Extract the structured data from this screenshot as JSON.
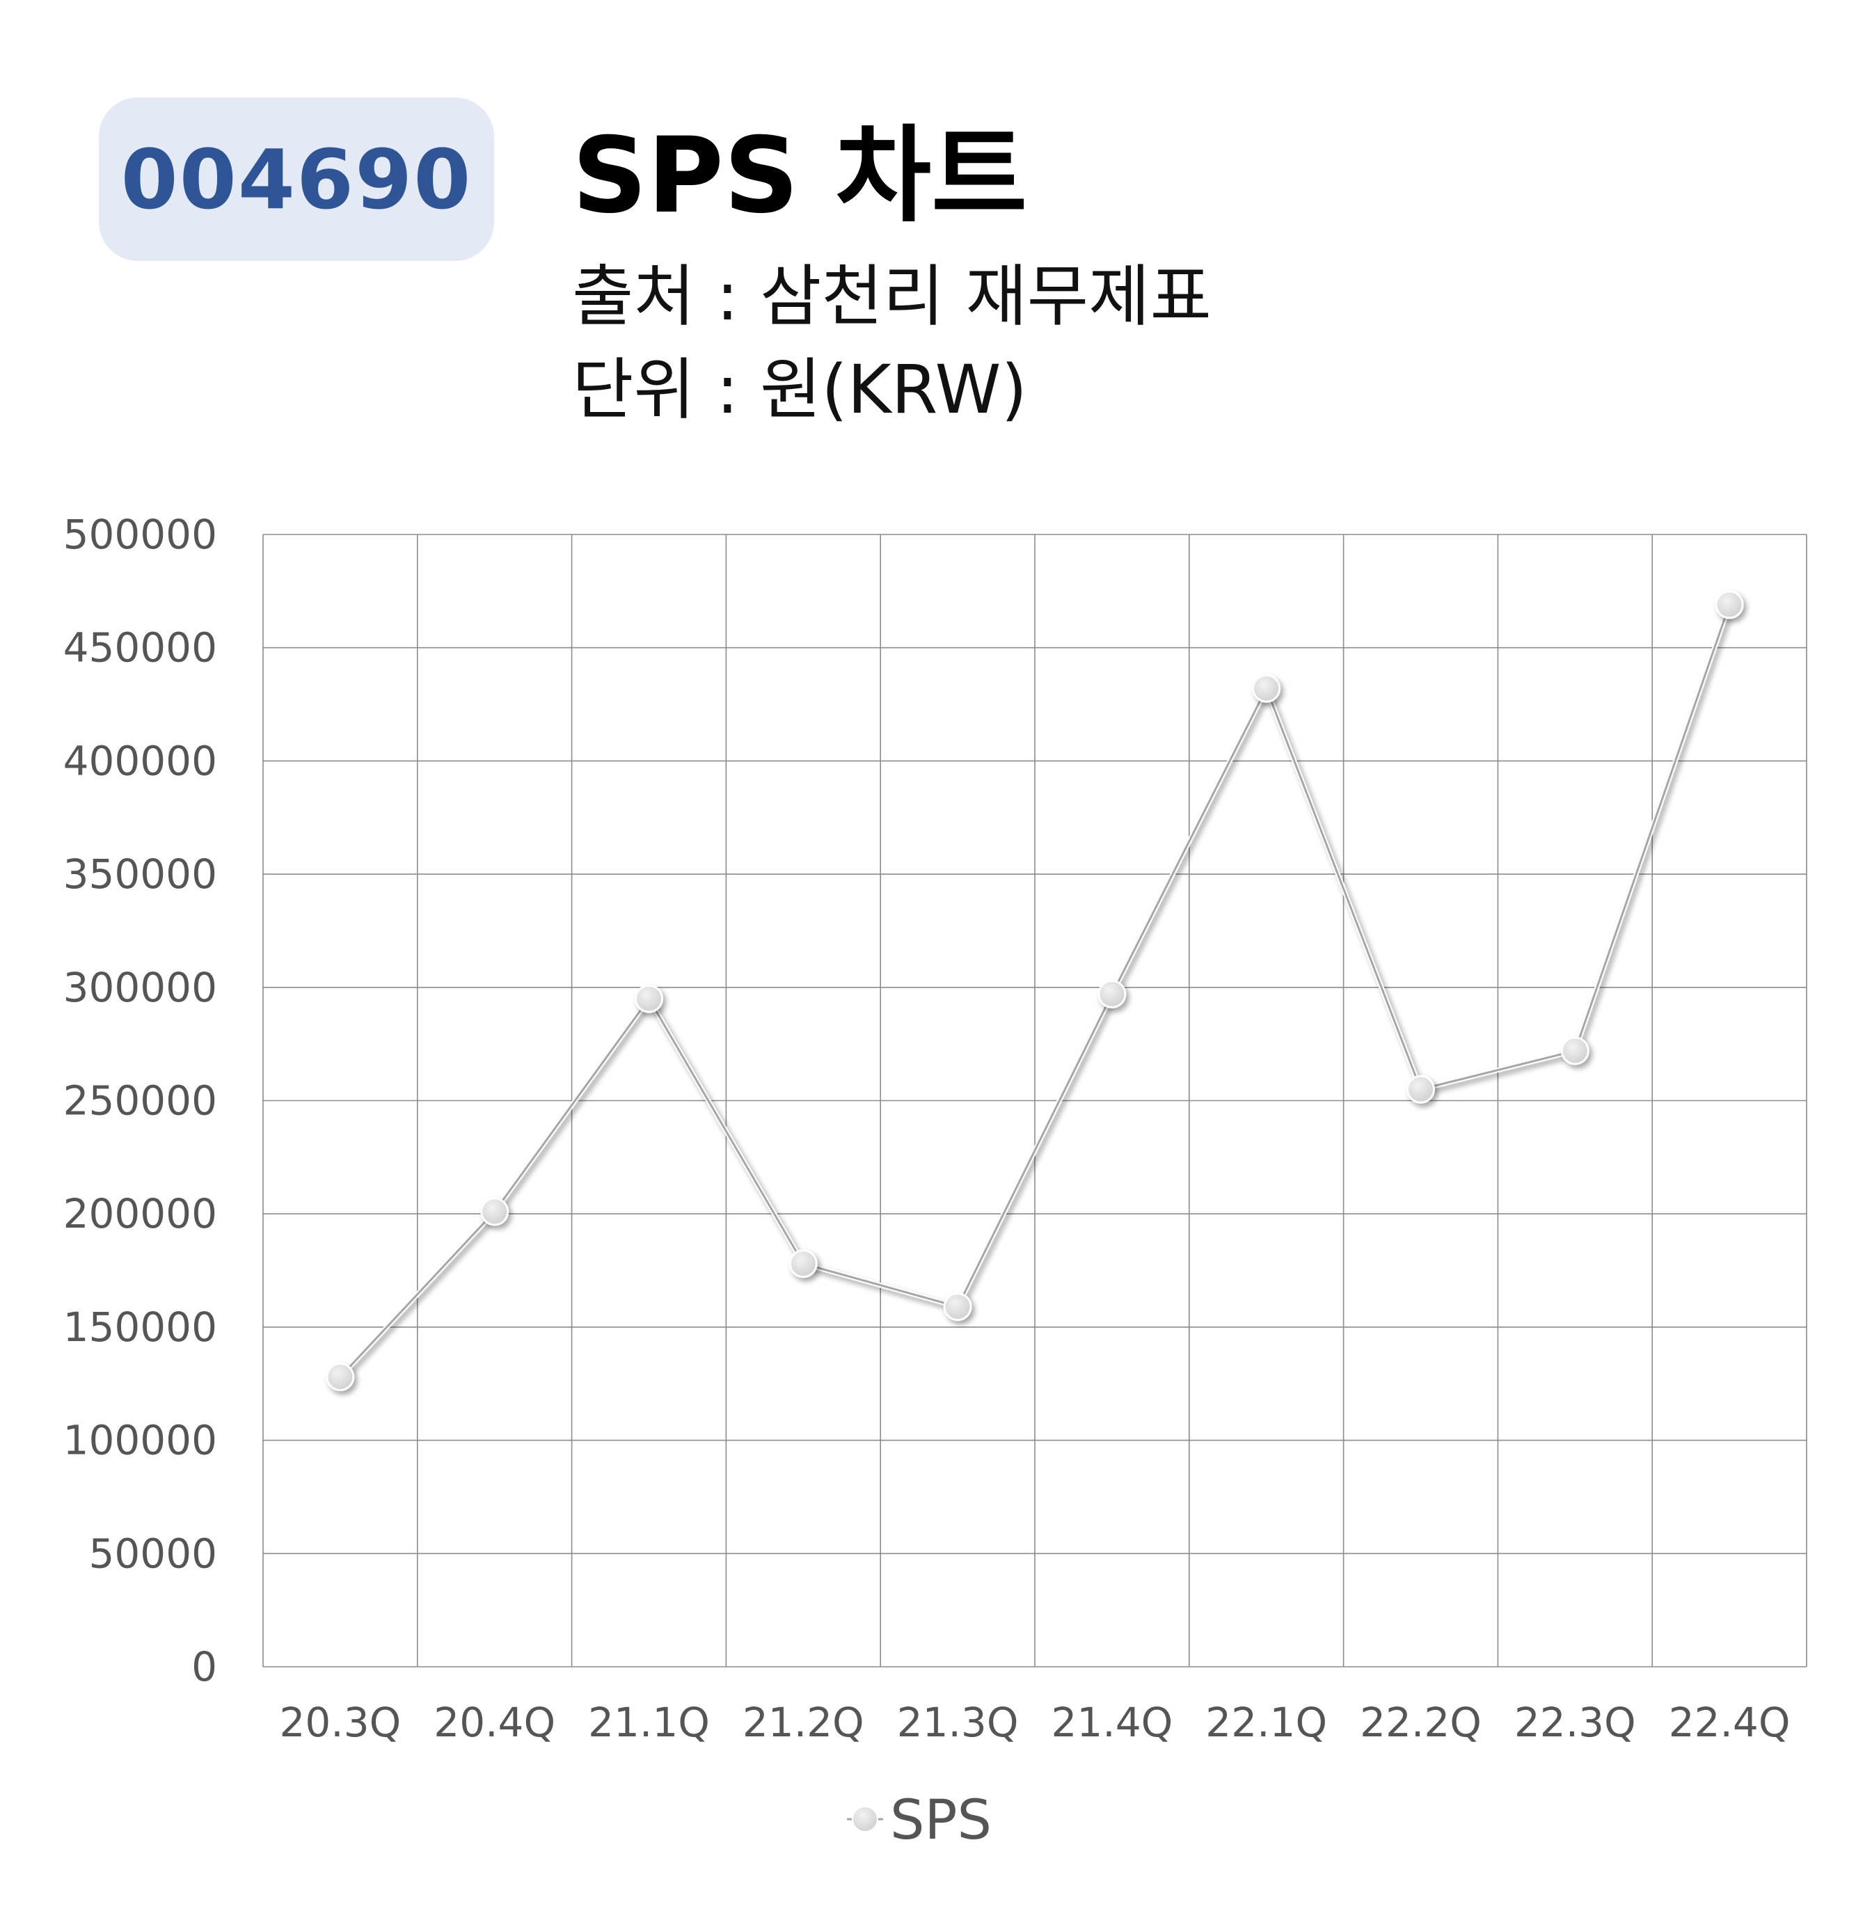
{
  "badge": {
    "code": "004690",
    "bg": "#e4eaf5",
    "color": "#2f5597"
  },
  "header": {
    "title": "SPS 차트",
    "source": "출처 : 삼천리 재무제표",
    "unit": "단위 : 원(KRW)"
  },
  "chart_data": {
    "type": "line",
    "categories": [
      "20.3Q",
      "20.4Q",
      "21.1Q",
      "21.2Q",
      "21.3Q",
      "21.4Q",
      "22.1Q",
      "22.2Q",
      "22.3Q",
      "22.4Q"
    ],
    "series": [
      {
        "name": "SPS",
        "values": [
          128000,
          201000,
          295000,
          178000,
          159000,
          297000,
          432000,
          255000,
          272000,
          469000
        ],
        "color": "#d9d9d9"
      }
    ],
    "ylim": [
      0,
      500000
    ],
    "yticks": [
      0,
      50000,
      100000,
      150000,
      200000,
      250000,
      300000,
      350000,
      400000,
      450000,
      500000
    ],
    "ytick_labels": [
      "0",
      "50000",
      "100000",
      "150000",
      "200000",
      "250000",
      "300000",
      "350000",
      "400000",
      "450000",
      "500000"
    ],
    "grid": true,
    "legend": "bottom-center",
    "line_color": "#a6a6a6",
    "grid_color": "#8c8c8c"
  }
}
